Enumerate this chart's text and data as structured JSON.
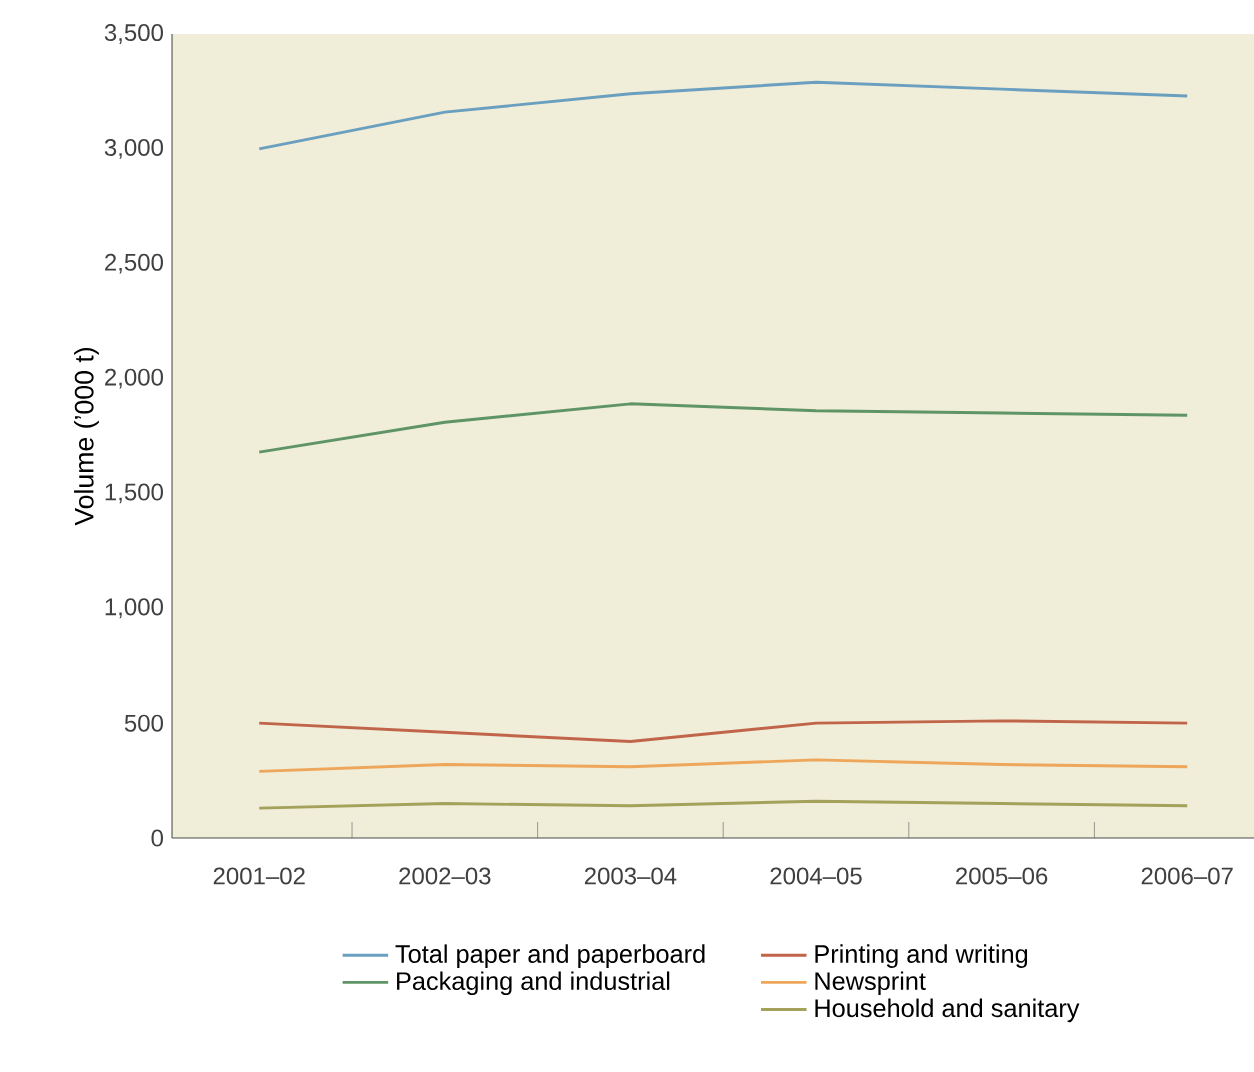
{
  "chart_data": {
    "type": "line",
    "ylabel": "Volume (’000 t)",
    "categories": [
      "2001–02",
      "2002–03",
      "2003–04",
      "2004–05",
      "2005–06",
      "2006–07"
    ],
    "series": [
      {
        "name": "Total paper and paperboard",
        "color": "#6a9fc0",
        "values": [
          3000,
          3160,
          3240,
          3290,
          3260,
          3230
        ]
      },
      {
        "name": "Packaging and industrial",
        "color": "#5f9566",
        "values": [
          1680,
          1810,
          1890,
          1860,
          1850,
          1840
        ]
      },
      {
        "name": "Printing and writing",
        "color": "#c0654a",
        "values": [
          500,
          460,
          420,
          500,
          510,
          500
        ]
      },
      {
        "name": "Newsprint",
        "color": "#eda65a",
        "values": [
          290,
          320,
          310,
          340,
          320,
          310
        ]
      },
      {
        "name": "Household and sanitary",
        "color": "#a3a15a",
        "values": [
          130,
          150,
          140,
          160,
          150,
          140
        ]
      }
    ],
    "ylim": [
      0,
      3500
    ],
    "yticks": [
      {
        "value": 0,
        "label": "0"
      },
      {
        "value": 500,
        "label": "500"
      },
      {
        "value": 1000,
        "label": "1,000"
      },
      {
        "value": 1500,
        "label": "1,500"
      },
      {
        "value": 2000,
        "label": "2,000"
      },
      {
        "value": 2500,
        "label": "2,500"
      },
      {
        "value": 3000,
        "label": "3,000"
      },
      {
        "value": 3500,
        "label": "3,500"
      }
    ],
    "legend": "bottom",
    "grid": false,
    "marker": "none",
    "line_style": "solid"
  }
}
